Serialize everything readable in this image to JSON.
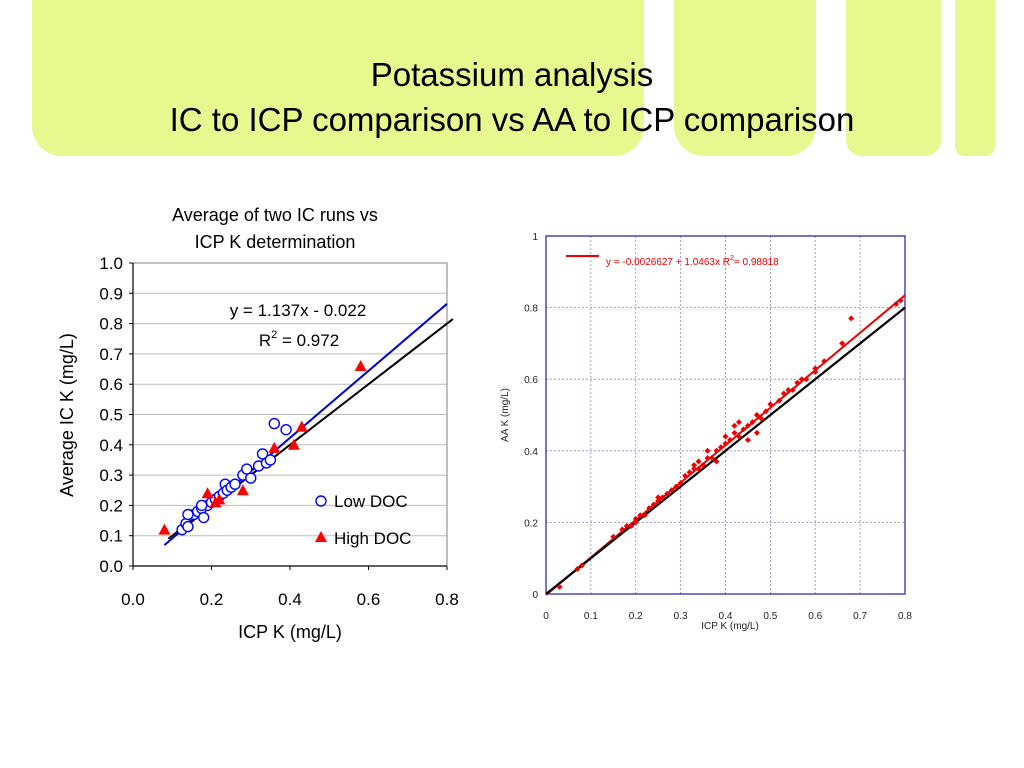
{
  "slide": {
    "title_line1": "Potassium analysis",
    "title_line2": "IC to ICP comparison vs AA to ICP comparison",
    "accent_color": "#e6f88e"
  },
  "chart_data": [
    {
      "type": "scatter",
      "title": "Average of two IC runs vs ICP K determination",
      "title_lines": [
        "Average of two IC runs vs",
        "ICP K determination"
      ],
      "xlabel": "ICP K (mg/L)",
      "ylabel": "Average IC K (mg/L)",
      "xlim": [
        0.0,
        0.8
      ],
      "ylim": [
        0.0,
        1.0
      ],
      "xticks": [
        "0.0",
        "0.2",
        "0.4",
        "0.6",
        "0.8"
      ],
      "yticks": [
        "0.0",
        "0.1",
        "0.2",
        "0.3",
        "0.4",
        "0.5",
        "0.6",
        "0.7",
        "0.8",
        "0.9",
        "1.0"
      ],
      "grid": true,
      "legend_position": "bottom-right",
      "equation": "y = 1.137x - 0.022",
      "r2_text": {
        "prefix": "R",
        "sup": "2",
        "suffix": " = 0.972"
      },
      "series": [
        {
          "name": "Low DOC",
          "marker": "open-circle",
          "color": "#0000ff",
          "x": [
            0.125,
            0.135,
            0.14,
            0.155,
            0.165,
            0.175,
            0.18,
            0.19,
            0.2,
            0.21,
            0.22,
            0.23,
            0.235,
            0.24,
            0.25,
            0.26,
            0.28,
            0.29,
            0.3,
            0.32,
            0.33,
            0.34,
            0.35,
            0.36,
            0.39,
            0.175,
            0.14
          ],
          "y": [
            0.12,
            0.14,
            0.13,
            0.17,
            0.18,
            0.19,
            0.16,
            0.2,
            0.21,
            0.22,
            0.23,
            0.24,
            0.27,
            0.25,
            0.26,
            0.27,
            0.3,
            0.32,
            0.29,
            0.33,
            0.37,
            0.34,
            0.35,
            0.47,
            0.45,
            0.2,
            0.17
          ]
        },
        {
          "name": "High DOC",
          "marker": "filled-triangle",
          "color": "#ff0000",
          "x": [
            0.08,
            0.19,
            0.21,
            0.22,
            0.28,
            0.36,
            0.41,
            0.43,
            0.58
          ],
          "y": [
            0.12,
            0.24,
            0.21,
            0.22,
            0.25,
            0.39,
            0.4,
            0.46,
            0.66
          ]
        }
      ],
      "lines": [
        {
          "label": "fit",
          "color": "#0000cc",
          "slope": 1.137,
          "intercept": -0.022
        },
        {
          "label": "1:1",
          "color": "#000000",
          "slope": 1.0,
          "intercept": 0.0
        }
      ]
    },
    {
      "type": "scatter",
      "xlabel": "ICP K (mg/L)",
      "ylabel": "AA K (mg/L)",
      "xlim": [
        0,
        0.8
      ],
      "ylim": [
        0,
        1
      ],
      "xticks": [
        "0",
        "0.1",
        "0.2",
        "0.3",
        "0.4",
        "0.5",
        "0.6",
        "0.7",
        "0.8"
      ],
      "yticks": [
        "0",
        "0.2",
        "0.4",
        "0.6",
        "0.8",
        "1"
      ],
      "grid": true,
      "legend_position": "top-left",
      "legend_text": "y = -0.0026627 + 1.0463x   R",
      "legend_sup": "2",
      "legend_suffix": "= 0.98818",
      "series": [
        {
          "name": "data",
          "marker": "filled-diamond",
          "color": "#ee0000",
          "x": [
            0.03,
            0.07,
            0.08,
            0.15,
            0.17,
            0.18,
            0.19,
            0.2,
            0.21,
            0.22,
            0.23,
            0.24,
            0.25,
            0.26,
            0.27,
            0.28,
            0.3,
            0.31,
            0.32,
            0.33,
            0.34,
            0.35,
            0.36,
            0.37,
            0.38,
            0.39,
            0.4,
            0.41,
            0.42,
            0.43,
            0.44,
            0.45,
            0.46,
            0.47,
            0.48,
            0.49,
            0.5,
            0.52,
            0.54,
            0.55,
            0.56,
            0.58,
            0.6,
            0.62,
            0.66,
            0.68,
            0.78,
            0.79,
            0.2,
            0.25,
            0.29,
            0.33,
            0.36,
            0.4,
            0.43,
            0.45,
            0.38,
            0.34,
            0.42,
            0.47,
            0.53,
            0.57,
            0.6
          ],
          "y": [
            0.02,
            0.07,
            0.08,
            0.16,
            0.18,
            0.19,
            0.19,
            0.2,
            0.22,
            0.22,
            0.24,
            0.25,
            0.26,
            0.27,
            0.28,
            0.29,
            0.31,
            0.33,
            0.34,
            0.35,
            0.35,
            0.36,
            0.38,
            0.38,
            0.4,
            0.41,
            0.42,
            0.43,
            0.45,
            0.44,
            0.46,
            0.47,
            0.48,
            0.5,
            0.49,
            0.51,
            0.53,
            0.54,
            0.57,
            0.57,
            0.59,
            0.6,
            0.63,
            0.65,
            0.7,
            0.77,
            0.81,
            0.82,
            0.21,
            0.27,
            0.3,
            0.36,
            0.4,
            0.44,
            0.48,
            0.43,
            0.37,
            0.37,
            0.47,
            0.45,
            0.56,
            0.6,
            0.62
          ]
        }
      ],
      "lines": [
        {
          "label": "fit",
          "color": "#ee0000",
          "slope": 1.0463,
          "intercept": -0.0026627
        },
        {
          "label": "1:1",
          "color": "#000000",
          "slope": 1.0,
          "intercept": 0.0
        }
      ]
    }
  ]
}
